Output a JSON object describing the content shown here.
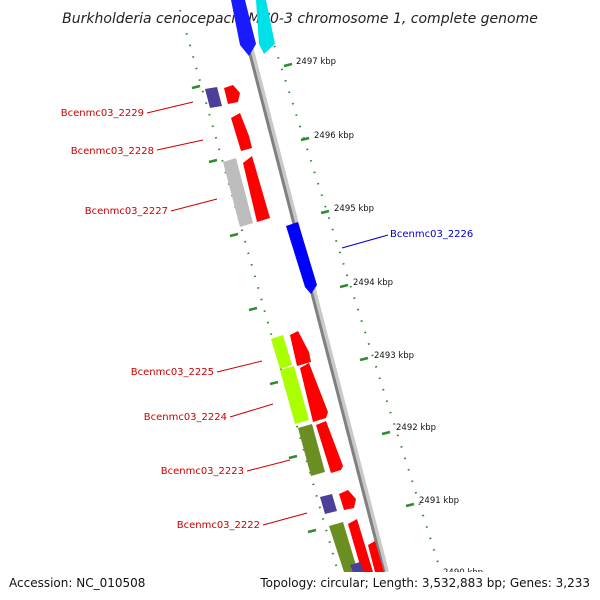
{
  "title": "Burkholderia cenocepacia MC0-3 chromosome 1, complete genome",
  "footer": {
    "accession": "Accession: NC_010508",
    "summary": "Topology: circular; Length: 3,532,883 bp; Genes: 3,233"
  },
  "colors": {
    "backbone": "#8a8a8a",
    "tick": "#2e8b2e",
    "label_red": "#cc0000",
    "label_blue": "#0000cc"
  },
  "kbp_labels": [
    "2497 kbp",
    "2496 kbp",
    "2495 kbp",
    "2494 kbp",
    "2493 kbp",
    "2492 kbp",
    "2491 kbp",
    "2490 kbp"
  ],
  "gene_labels": [
    {
      "text": "Bcenmc03_2229",
      "color": "red"
    },
    {
      "text": "Bcenmc03_2228",
      "color": "red"
    },
    {
      "text": "Bcenmc03_2227",
      "color": "red"
    },
    {
      "text": "Bcenmc03_2226",
      "color": "blue"
    },
    {
      "text": "Bcenmc03_2225",
      "color": "red"
    },
    {
      "text": "Bcenmc03_2224",
      "color": "red"
    },
    {
      "text": "Bcenmc03_2223",
      "color": "red"
    },
    {
      "text": "Bcenmc03_2222",
      "color": "red"
    }
  ]
}
